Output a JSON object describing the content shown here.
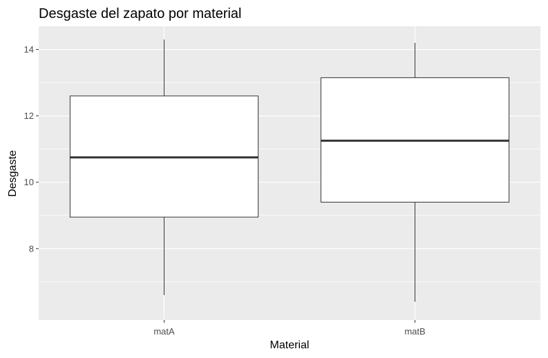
{
  "chart_data": {
    "type": "boxplot",
    "title": "Desgaste del zapato por material",
    "xlabel": "Material",
    "ylabel": "Desgaste",
    "categories": [
      "matA",
      "matB"
    ],
    "boxes": [
      {
        "category": "matA",
        "min": 6.6,
        "q1": 8.95,
        "median": 10.75,
        "q3": 12.6,
        "max": 14.3
      },
      {
        "category": "matB",
        "min": 6.4,
        "q1": 9.4,
        "median": 11.25,
        "q3": 13.15,
        "max": 14.2
      }
    ],
    "ylim": [
      5.85,
      14.7
    ],
    "yticks": [
      8,
      10,
      12,
      14
    ],
    "grid": true,
    "colors": {
      "panel": "#EBEBEB",
      "grid": "#FFFFFF",
      "box_fill": "#FFFFFF",
      "box_line": "#333333"
    }
  }
}
